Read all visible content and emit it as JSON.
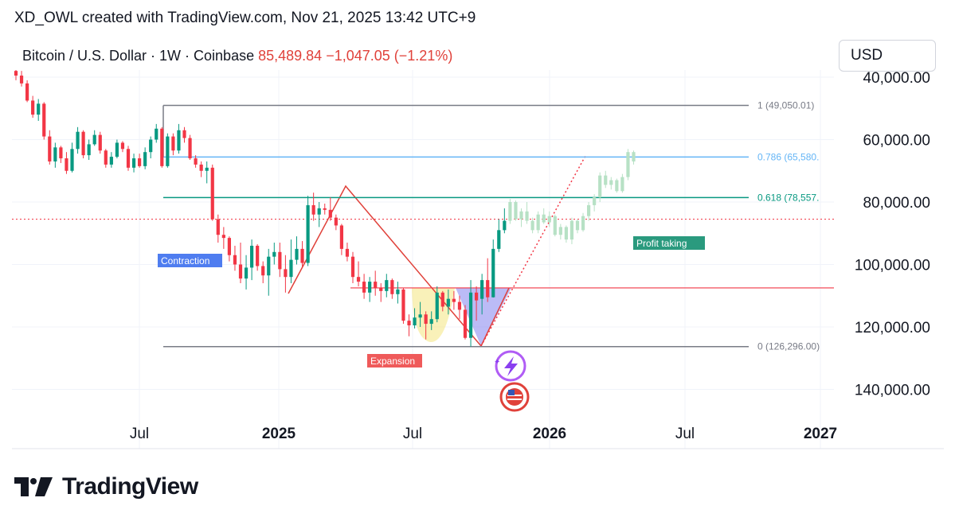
{
  "header": {
    "credit": "XD_OWL created with TradingView.com, Nov 21, 2025 13:42 UTC+9",
    "symbol": "Bitcoin / U.S. Dollar · 1W · Coinbase",
    "price": "85,489.84",
    "change": "−1,047.05 (−1.21%)",
    "currency": "USD"
  },
  "brand": {
    "name": "TradingView"
  },
  "colors": {
    "up": "#089981",
    "down": "#f23645",
    "projection": "#b7e1c5",
    "grid": "#f0f3fa"
  },
  "chart_data": {
    "type": "candlestick",
    "title": "Bitcoin / U.S. Dollar · 1W · Coinbase",
    "y_axis": {
      "ticks": [
        "40,000.00",
        "60,000.00",
        "80,000.00",
        "100,000.00",
        "120,000.00",
        "140,000.00"
      ],
      "tick_values": [
        40000,
        60000,
        80000,
        100000,
        120000,
        140000
      ],
      "inverted": true
    },
    "x_axis": {
      "ticks": [
        "Jul",
        "2025",
        "Jul",
        "2026",
        "Jul",
        "2027"
      ]
    },
    "current_price": 85489.84,
    "fib_levels": [
      {
        "label": "1 (49,050.01)",
        "value": 49050.01
      },
      {
        "label": "0.786 (65,580.",
        "value": 65580
      },
      {
        "label": "0.618 (78,557.",
        "value": 78557
      },
      {
        "label": "0 (126,296.00)",
        "value": 126296
      }
    ],
    "horizontal_line": 107500,
    "annotations": [
      "Contraction",
      "Expansion",
      "Profit taking"
    ],
    "candles": [
      [
        38000,
        41000,
        37000,
        39500
      ],
      [
        39500,
        43000,
        38000,
        42000
      ],
      [
        42000,
        48000,
        41000,
        47500
      ],
      [
        47500,
        53000,
        46000,
        52000
      ],
      [
        52000,
        54000,
        47000,
        48500
      ],
      [
        48500,
        60000,
        48000,
        59000
      ],
      [
        59000,
        68000,
        57000,
        67000
      ],
      [
        67000,
        69000,
        61000,
        62500
      ],
      [
        62500,
        67500,
        62000,
        66000
      ],
      [
        66000,
        71000,
        64000,
        70000
      ],
      [
        70000,
        70500,
        61000,
        63000
      ],
      [
        63000,
        64500,
        56000,
        57500
      ],
      [
        57500,
        66000,
        57000,
        65000
      ],
      [
        65000,
        66500,
        60000,
        61500
      ],
      [
        61500,
        62000,
        57000,
        58500
      ],
      [
        58500,
        64500,
        57500,
        63500
      ],
      [
        63500,
        69000,
        63000,
        68000
      ],
      [
        68000,
        69000,
        64000,
        65500
      ],
      [
        65500,
        66000,
        60000,
        61000
      ],
      [
        61000,
        64000,
        60500,
        63000
      ],
      [
        63000,
        70000,
        62000,
        69000
      ],
      [
        69000,
        70500,
        64500,
        66000
      ],
      [
        66000,
        69000,
        64500,
        68500
      ],
      [
        68500,
        69500,
        62500,
        64000
      ],
      [
        64000,
        66000,
        59000,
        60000
      ],
      [
        60000,
        61000,
        55000,
        56500
      ],
      [
        56500,
        69000,
        56000,
        68500
      ],
      [
        68500,
        69000,
        58000,
        59000
      ],
      [
        59000,
        65000,
        58000,
        63500
      ],
      [
        63500,
        64500,
        55000,
        57000
      ],
      [
        57000,
        61000,
        56000,
        59500
      ],
      [
        59500,
        66500,
        58500,
        66000
      ],
      [
        66000,
        69000,
        65000,
        68000
      ],
      [
        68000,
        72000,
        67000,
        70000
      ],
      [
        70000,
        74000,
        67000,
        69000
      ],
      [
        69000,
        86000,
        68000,
        85500
      ],
      [
        85500,
        93000,
        84000,
        90500
      ],
      [
        90500,
        95000,
        88000,
        91500
      ],
      [
        91500,
        99000,
        91000,
        97000
      ],
      [
        97000,
        102000,
        94000,
        100000
      ],
      [
        100000,
        106000,
        93000,
        104500
      ],
      [
        104500,
        108000,
        97000,
        101000
      ],
      [
        101000,
        105000,
        92000,
        94000
      ],
      [
        94000,
        102000,
        93500,
        100500
      ],
      [
        100500,
        106000,
        99000,
        103500
      ],
      [
        103500,
        110000,
        95000,
        97500
      ],
      [
        97500,
        100000,
        93000,
        96000
      ],
      [
        96000,
        104000,
        93000,
        101500
      ],
      [
        101500,
        109000,
        97000,
        104000
      ],
      [
        104000,
        106000,
        92000,
        98500
      ],
      [
        98500,
        100000,
        91000,
        95000
      ],
      [
        95000,
        101000,
        92500,
        99500
      ],
      [
        99500,
        100500,
        78000,
        81000
      ],
      [
        81000,
        86000,
        77000,
        84000
      ],
      [
        84000,
        88000,
        80000,
        82000
      ],
      [
        82000,
        84000,
        80500,
        82500
      ],
      [
        82500,
        86000,
        78500,
        85000
      ],
      [
        85000,
        89000,
        84000,
        87500
      ],
      [
        87500,
        97000,
        87000,
        95000
      ],
      [
        95000,
        99000,
        93000,
        97500
      ],
      [
        97500,
        106000,
        96000,
        104000
      ],
      [
        104000,
        107000,
        99000,
        105500
      ],
      [
        105500,
        111000,
        103000,
        109000
      ],
      [
        109000,
        112000,
        104000,
        105500
      ],
      [
        105500,
        110000,
        102000,
        107500
      ],
      [
        107500,
        112000,
        106000,
        108500
      ],
      [
        108500,
        110500,
        103000,
        105000
      ],
      [
        105000,
        111000,
        104500,
        109500
      ],
      [
        109500,
        112500,
        105500,
        108000
      ],
      [
        108000,
        119000,
        107500,
        118000
      ],
      [
        118000,
        123000,
        116000,
        119500
      ],
      [
        119500,
        120500,
        114000,
        117000
      ],
      [
        117000,
        120000,
        112000,
        116000
      ],
      [
        116000,
        124000,
        115000,
        119000
      ],
      [
        119000,
        121000,
        115000,
        117500
      ],
      [
        117500,
        118500,
        107000,
        109000
      ],
      [
        109000,
        115000,
        108500,
        113500
      ],
      [
        113500,
        116000,
        108000,
        111000
      ],
      [
        111000,
        114500,
        108500,
        112000
      ],
      [
        112000,
        117500,
        110000,
        114500
      ],
      [
        114500,
        124000,
        113000,
        123500
      ],
      [
        123500,
        126300,
        105000,
        109000
      ],
      [
        109000,
        118000,
        107000,
        111500
      ],
      [
        111000,
        116000,
        103000,
        105000
      ],
      [
        105000,
        112000,
        98000,
        110500
      ],
      [
        110500,
        110600,
        92000,
        95000
      ],
      [
        95000,
        96000,
        85500,
        89000
      ],
      [
        89000,
        90000,
        82000,
        86000
      ]
    ],
    "projection": [
      [
        86000,
        87000,
        79000,
        80000
      ],
      [
        80000,
        86000,
        79500,
        85500
      ],
      [
        85500,
        88000,
        82000,
        83000
      ],
      [
        83000,
        87000,
        80000,
        86000
      ],
      [
        86000,
        90000,
        85000,
        89000
      ],
      [
        89000,
        90000,
        83000,
        84000
      ],
      [
        84000,
        87000,
        82000,
        86500
      ],
      [
        86500,
        88000,
        83000,
        84500
      ],
      [
        84500,
        91000,
        84000,
        90500
      ],
      [
        90500,
        92000,
        87000,
        88000
      ],
      [
        88000,
        93000,
        87500,
        92000
      ],
      [
        92000,
        93500,
        85000,
        86000
      ],
      [
        86000,
        90000,
        85500,
        89000
      ],
      [
        89000,
        89500,
        83500,
        84500
      ],
      [
        84500,
        86000,
        80000,
        81000
      ],
      [
        81000,
        83000,
        77500,
        78500
      ],
      [
        78500,
        80000,
        70500,
        71500
      ],
      [
        71500,
        75500,
        70000,
        74500
      ],
      [
        74500,
        76000,
        72000,
        73000
      ],
      [
        73000,
        77000,
        72500,
        76500
      ],
      [
        76500,
        77000,
        71000,
        72000
      ],
      [
        72000,
        73000,
        63000,
        64000
      ],
      [
        64000,
        68000,
        63500,
        67000
      ]
    ]
  }
}
